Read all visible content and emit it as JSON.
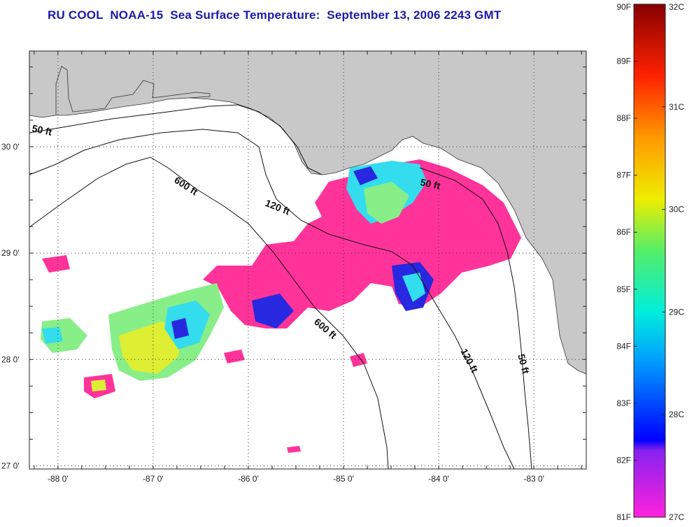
{
  "title": "RU COOL  NOAA-15  Sea Surface Temperature:  September 13, 2006 2243 GMT",
  "map": {
    "lon_range": [
      -88.3,
      -82.45
    ],
    "lat_range": [
      26.97,
      30.9
    ],
    "lon_ticks": [
      {
        "value": -88,
        "label": "-88 0'"
      },
      {
        "value": -87,
        "label": "-87 0'"
      },
      {
        "value": -86,
        "label": "-86 0'"
      },
      {
        "value": -85,
        "label": "-85 0'"
      },
      {
        "value": -84,
        "label": "-84 0'"
      },
      {
        "value": -83,
        "label": "-83 0'"
      }
    ],
    "lat_ticks": [
      {
        "value": 30,
        "label": "30 0'"
      },
      {
        "value": 29,
        "label": "29 0'"
      },
      {
        "value": 28,
        "label": "28 0'"
      },
      {
        "value": 27,
        "label": "27 0'"
      }
    ],
    "depth_labels": [
      "50 ft",
      "600 ft",
      "120 ft",
      "50 ft",
      "600 ft",
      "120 ft",
      "50 ft"
    ],
    "colors": {
      "land": "#c8c8c8",
      "water": "#ffffff",
      "pink": "#ff3399",
      "blue": "#2828e0",
      "cyan": "#33ddee",
      "green": "#88ee88",
      "yellow": "#ddee33"
    }
  },
  "colorbar": {
    "fahrenheit_labels": [
      "90F",
      "89F",
      "88F",
      "87F",
      "86F",
      "85F",
      "84F",
      "83F",
      "82F",
      "81F"
    ],
    "celsius_labels": [
      "32C",
      "31C",
      "30C",
      "29C",
      "28C",
      "27C"
    ]
  }
}
